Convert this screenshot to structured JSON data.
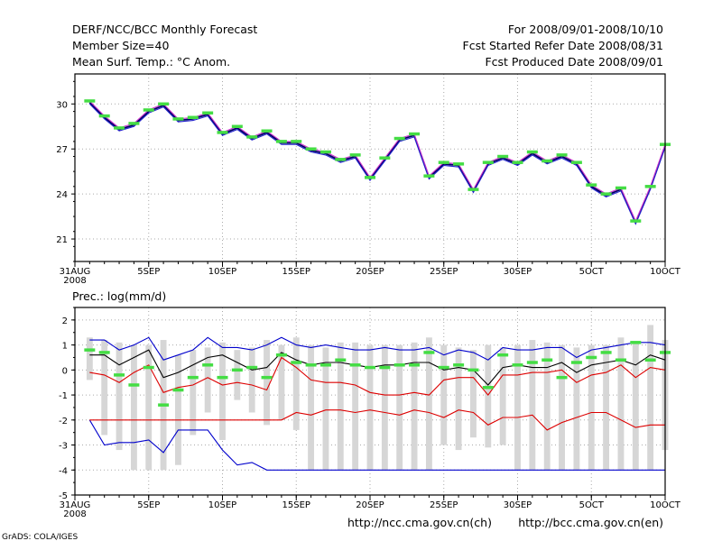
{
  "header": {
    "left": [
      "DERF/NCC/BCC Monthly Forecast",
      "Member Size=40",
      "Mean Surf. Temp.: °C Anom."
    ],
    "right": [
      "For 2008/09/01-2008/10/10",
      "Fcst Started Refer Date 2008/08/31",
      "Fcst Produced Date 2008/09/01"
    ]
  },
  "footer": {
    "credit": "GrADS: COLA/IGES",
    "url_ch": "http://ncc.cma.gov.cn(ch)",
    "url_en": "http://bcc.cma.gov.cn(en)"
  },
  "colors": {
    "mean": "#000000",
    "upper": "#0000cc",
    "lower": "#dd0000",
    "marker": "#44dd44",
    "spread": "#d6d6d6",
    "grid": "#aaaaaa"
  },
  "chart_data": [
    {
      "type": "line",
      "title": "Mean Surf. Temp.: °C Anom.",
      "x_tick_labels": [
        "31AUG",
        "5SEP",
        "10SEP",
        "15SEP",
        "20SEP",
        "25SEP",
        "30SEP",
        "5OCT",
        "10OCT"
      ],
      "x_tick_days": [
        0,
        5,
        10,
        15,
        20,
        25,
        30,
        35,
        40
      ],
      "x_sublabel": "2008",
      "xlim": [
        0,
        40
      ],
      "ylim": [
        19.5,
        32
      ],
      "y_ticks": [
        21,
        24,
        27,
        30
      ],
      "series": [
        {
          "name": "ensemble mean",
          "values": [
            30.1,
            29.1,
            28.3,
            28.6,
            29.5,
            29.9,
            28.9,
            29.0,
            29.3,
            28.0,
            28.4,
            27.7,
            28.1,
            27.4,
            27.4,
            26.9,
            26.7,
            26.2,
            26.5,
            25.0,
            26.3,
            27.6,
            27.9,
            25.1,
            26.0,
            25.9,
            24.2,
            26.0,
            26.4,
            26.0,
            26.7,
            26.1,
            26.5,
            26.0,
            24.5,
            23.9,
            24.3,
            22.1,
            24.4,
            27.2
          ]
        },
        {
          "name": "upper",
          "values": [
            30.2,
            29.2,
            28.4,
            28.7,
            29.6,
            30.0,
            29.0,
            29.1,
            29.4,
            28.1,
            28.5,
            27.8,
            28.2,
            27.5,
            27.5,
            27.0,
            26.8,
            26.3,
            26.6,
            25.1,
            26.4,
            27.7,
            28.0,
            25.2,
            26.1,
            26.0,
            24.3,
            26.1,
            26.5,
            26.1,
            26.8,
            26.2,
            26.6,
            26.1,
            24.6,
            24.0,
            24.4,
            22.2,
            24.5,
            27.3
          ]
        },
        {
          "name": "lower",
          "values": [
            30.0,
            29.0,
            28.2,
            28.5,
            29.4,
            29.8,
            28.8,
            28.9,
            29.2,
            27.9,
            28.3,
            27.6,
            28.0,
            27.3,
            27.3,
            26.8,
            26.6,
            26.1,
            26.4,
            24.9,
            26.2,
            27.5,
            27.8,
            25.0,
            25.9,
            25.8,
            24.1,
            25.9,
            26.3,
            25.9,
            26.6,
            26.0,
            26.4,
            25.9,
            24.4,
            23.8,
            24.2,
            22.0,
            24.3,
            27.1
          ]
        },
        {
          "name": "observed marker",
          "values": [
            30.2,
            29.2,
            28.4,
            28.7,
            29.6,
            30.0,
            29.0,
            29.1,
            29.4,
            28.1,
            28.5,
            27.8,
            28.2,
            27.5,
            27.5,
            27.0,
            26.8,
            26.3,
            26.6,
            25.1,
            26.4,
            27.7,
            28.0,
            25.2,
            26.1,
            26.0,
            24.3,
            26.1,
            26.5,
            26.1,
            26.8,
            26.2,
            26.6,
            26.1,
            24.6,
            24.0,
            24.4,
            22.2,
            24.5,
            27.3
          ]
        }
      ]
    },
    {
      "type": "line",
      "title": "Prec.: log(mm/d)",
      "x_tick_labels": [
        "31AUG",
        "5SEP",
        "10SEP",
        "15SEP",
        "20SEP",
        "25SEP",
        "30SEP",
        "5OCT",
        "10OCT"
      ],
      "x_tick_days": [
        0,
        5,
        10,
        15,
        20,
        25,
        30,
        35,
        40
      ],
      "x_sublabel": "2008",
      "xlim": [
        0,
        40
      ],
      "ylim": [
        -5,
        2.5
      ],
      "y_ticks": [
        -5,
        -4,
        -3,
        -2,
        -1,
        0,
        1,
        2
      ],
      "spread_bars": {
        "top": [
          1.3,
          1.2,
          1.1,
          1.0,
          1.0,
          1.2,
          0.6,
          0.8,
          0.9,
          1.1,
          0.8,
          0.9,
          1.2,
          1.0,
          1.3,
          1.0,
          0.9,
          1.1,
          1.1,
          1.0,
          1.0,
          1.0,
          1.1,
          1.3,
          1.0,
          0.9,
          0.8,
          1.0,
          0.9,
          1.0,
          1.2,
          1.1,
          1.0,
          0.9,
          1.0,
          1.0,
          1.3,
          1.1,
          1.8,
          1.2
        ],
        "bottom": [
          -0.4,
          -2.6,
          -3.2,
          -4.0,
          -4.0,
          -4.0,
          -3.8,
          -2.6,
          -1.7,
          -2.8,
          -1.2,
          -1.7,
          -2.2,
          -2.0,
          -2.4,
          -4.0,
          -4.0,
          -4.0,
          -4.0,
          -4.0,
          -4.0,
          -4.0,
          -4.0,
          -4.0,
          -3.0,
          -3.2,
          -2.7,
          -3.1,
          -3.0,
          -4.0,
          -4.0,
          -4.0,
          -4.0,
          -4.0,
          -4.0,
          -4.0,
          -4.0,
          -4.0,
          -4.0,
          -3.2
        ]
      },
      "series": [
        {
          "name": "ensemble mean",
          "values": [
            0.6,
            0.6,
            0.2,
            0.5,
            0.8,
            -0.3,
            -0.1,
            0.2,
            0.5,
            0.6,
            0.3,
            0.0,
            0.1,
            0.7,
            0.4,
            0.2,
            0.3,
            0.3,
            0.2,
            0.1,
            0.2,
            0.2,
            0.3,
            0.3,
            0.0,
            0.1,
            0.0,
            -0.6,
            0.1,
            0.2,
            0.1,
            0.1,
            0.3,
            -0.1,
            0.2,
            0.3,
            0.4,
            0.2,
            0.6,
            0.4
          ]
        },
        {
          "name": "upper",
          "values": [
            1.2,
            1.2,
            0.8,
            1.0,
            1.3,
            0.4,
            0.6,
            0.8,
            1.3,
            0.9,
            0.9,
            0.8,
            1.0,
            1.3,
            1.0,
            0.9,
            1.0,
            0.9,
            0.8,
            0.8,
            0.9,
            0.8,
            0.8,
            0.9,
            0.6,
            0.8,
            0.7,
            0.4,
            0.9,
            0.8,
            0.8,
            0.9,
            0.9,
            0.5,
            0.8,
            0.9,
            1.0,
            1.1,
            1.1,
            1.0
          ]
        },
        {
          "name": "lower",
          "values": [
            -0.1,
            -0.2,
            -0.5,
            -0.1,
            0.2,
            -0.9,
            -0.7,
            -0.6,
            -0.3,
            -0.6,
            -0.5,
            -0.6,
            -0.8,
            0.5,
            0.1,
            -0.4,
            -0.5,
            -0.5,
            -0.6,
            -0.9,
            -1.0,
            -1.0,
            -0.9,
            -1.0,
            -0.4,
            -0.3,
            -0.3,
            -1.0,
            -0.2,
            -0.2,
            -0.1,
            -0.1,
            0.0,
            -0.5,
            -0.2,
            -0.1,
            0.2,
            -0.3,
            0.1,
            0.0
          ]
        },
        {
          "name": "lower extreme",
          "values": [
            -2.0,
            -3.0,
            -2.9,
            -2.9,
            -2.8,
            -3.3,
            -2.4,
            -2.4,
            -2.4,
            -3.2,
            -3.8,
            -3.7,
            -4.0,
            -4.0,
            -4.0,
            -4.0,
            -4.0,
            -4.0,
            -4.0,
            -4.0,
            -4.0,
            -4.0,
            -4.0,
            -4.0,
            -4.0,
            -4.0,
            -4.0,
            -4.0,
            -4.0,
            -4.0,
            -4.0,
            -4.0,
            -4.0,
            -4.0,
            -4.0,
            -4.0,
            -4.0,
            -4.0,
            -4.0,
            -4.0
          ]
        },
        {
          "name": "lower 2",
          "values": [
            -2.0,
            -2.0,
            -2.0,
            -2.0,
            -2.0,
            -2.0,
            -2.0,
            -2.0,
            -2.0,
            -2.0,
            -2.0,
            -2.0,
            -2.0,
            -2.0,
            -1.7,
            -1.8,
            -1.6,
            -1.6,
            -1.7,
            -1.6,
            -1.7,
            -1.8,
            -1.6,
            -1.7,
            -1.9,
            -1.6,
            -1.7,
            -2.2,
            -1.9,
            -1.9,
            -1.8,
            -2.4,
            -2.1,
            -1.9,
            -1.7,
            -1.7,
            -2.0,
            -2.3,
            -2.2,
            -2.2
          ]
        },
        {
          "name": "observed marker",
          "values": [
            0.8,
            0.7,
            -0.2,
            -0.6,
            0.1,
            -1.4,
            -0.8,
            -0.3,
            0.2,
            -0.3,
            0.0,
            0.1,
            -0.3,
            0.6,
            0.3,
            0.2,
            0.2,
            0.4,
            0.2,
            0.1,
            0.1,
            0.2,
            0.2,
            0.7,
            0.1,
            0.2,
            0.0,
            -0.7,
            0.6,
            0.2,
            0.3,
            0.4,
            -0.3,
            0.3,
            0.5,
            0.7,
            0.4,
            1.1,
            0.4,
            0.7
          ]
        }
      ]
    }
  ]
}
